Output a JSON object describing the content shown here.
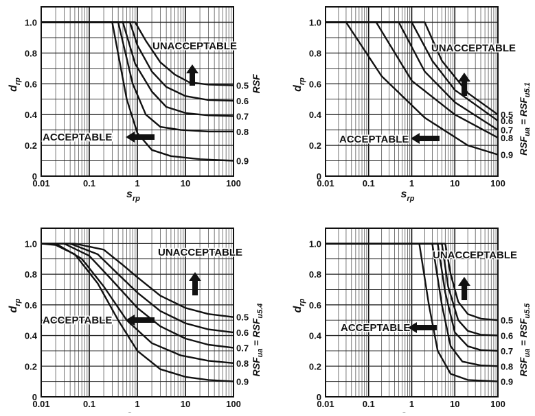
{
  "chart_data": [
    {
      "type": "line",
      "xscale": "log",
      "xlim": [
        0.01,
        100
      ],
      "ylim": [
        0,
        1.1
      ],
      "x_ticks": [
        "0.01",
        "0.1",
        "1",
        "10",
        "100"
      ],
      "y_ticks": [
        "0",
        "0.2",
        "0.4",
        "0.6",
        "0.8",
        "1.0"
      ],
      "xlabel_main": "s",
      "xlabel_sub": "rp",
      "ylabel_main": "d",
      "ylabel_sub": "rp",
      "right_label_main": "RSF",
      "right_label_sub": "",
      "right_label_rest": "",
      "unacceptable": "UNACCEPTABLE",
      "acceptable": "ACCEPTABLE",
      "series": [
        {
          "name": "0.5",
          "x": [
            0.01,
            0.3,
            0.9,
            1.5,
            3,
            6,
            12,
            30,
            100
          ],
          "y": [
            1.0,
            1.0,
            1.0,
            0.88,
            0.74,
            0.66,
            0.61,
            0.595,
            0.59
          ]
        },
        {
          "name": "0.6",
          "x": [
            0.01,
            0.3,
            0.7,
            1,
            2,
            4,
            10,
            30,
            100
          ],
          "y": [
            1.0,
            1.0,
            1.0,
            0.85,
            0.68,
            0.58,
            0.52,
            0.495,
            0.49
          ]
        },
        {
          "name": "0.7",
          "x": [
            0.01,
            0.3,
            0.5,
            0.9,
            2,
            4,
            10,
            30,
            100
          ],
          "y": [
            1.0,
            1.0,
            1.0,
            0.73,
            0.55,
            0.45,
            0.41,
            0.395,
            0.39
          ]
        },
        {
          "name": "0.8",
          "x": [
            0.01,
            0.25,
            0.4,
            0.8,
            1.5,
            3,
            8,
            30,
            100
          ],
          "y": [
            1.0,
            1.0,
            1.0,
            0.6,
            0.4,
            0.32,
            0.3,
            0.29,
            0.29
          ]
        },
        {
          "name": "0.9",
          "x": [
            0.01,
            0.2,
            0.3,
            0.6,
            1,
            2,
            5,
            20,
            100
          ],
          "y": [
            1.0,
            1.0,
            1.0,
            0.5,
            0.28,
            0.17,
            0.13,
            0.11,
            0.1
          ]
        }
      ]
    },
    {
      "type": "line",
      "xscale": "log",
      "xlim": [
        0.01,
        100
      ],
      "ylim": [
        0,
        1.1
      ],
      "x_ticks": [
        "0.01",
        "0.1",
        "1",
        "10",
        "100"
      ],
      "y_ticks": [
        "0",
        "0.2",
        "0.4",
        "0.6",
        "0.8",
        "1.0"
      ],
      "xlabel_main": "s",
      "xlabel_sub": "rp",
      "ylabel_main": "d",
      "ylabel_sub": "rp",
      "right_label_main": "RSF",
      "right_label_sub": "ua",
      "right_label_rest": " = RSF",
      "right_label_sub2": "u5.1",
      "unacceptable": "UNACCEPTABLE",
      "acceptable": "ACCEPTABLE",
      "series": [
        {
          "name": "0.5",
          "x": [
            0.01,
            1.6,
            2,
            5,
            20,
            100
          ],
          "y": [
            1.0,
            1.0,
            1.0,
            0.75,
            0.54,
            0.4
          ]
        },
        {
          "name": "0.6",
          "x": [
            0.01,
            0.8,
            1,
            3,
            10,
            100
          ],
          "y": [
            1.0,
            1.0,
            1.0,
            0.75,
            0.56,
            0.36
          ]
        },
        {
          "name": "0.7",
          "x": [
            0.01,
            0.4,
            0.5,
            2,
            10,
            100
          ],
          "y": [
            1.0,
            1.0,
            1.0,
            0.68,
            0.48,
            0.3
          ]
        },
        {
          "name": "0.8",
          "x": [
            0.01,
            0.12,
            0.15,
            1,
            10,
            100
          ],
          "y": [
            1.0,
            1.0,
            1.0,
            0.62,
            0.4,
            0.25
          ]
        },
        {
          "name": "0.9",
          "x": [
            0.01,
            0.025,
            0.03,
            0.2,
            2,
            20,
            100
          ],
          "y": [
            1.0,
            1.0,
            1.0,
            0.65,
            0.38,
            0.2,
            0.14
          ]
        }
      ]
    },
    {
      "type": "line",
      "xscale": "log",
      "xlim": [
        0.01,
        100
      ],
      "ylim": [
        0,
        1.1
      ],
      "x_ticks": [
        "0.01",
        "0.1",
        "1",
        "10",
        "100"
      ],
      "y_ticks": [
        "0",
        "0.2",
        "0.4",
        "0.6",
        "0.8",
        "1.0"
      ],
      "xlabel_main": "s",
      "xlabel_sub": "rp",
      "ylabel_main": "d",
      "ylabel_sub": "rp",
      "right_label_main": "RSF",
      "right_label_sub": "ua",
      "right_label_rest": " = RSF",
      "right_label_sub2": "u5.4",
      "unacceptable": "UNACCEPTABLE",
      "acceptable": "ACCEPTABLE",
      "series": [
        {
          "name": "0.5",
          "x": [
            0.01,
            0.05,
            0.2,
            0.5,
            1,
            3,
            10,
            30,
            100
          ],
          "y": [
            1.0,
            1.0,
            0.96,
            0.86,
            0.78,
            0.66,
            0.58,
            0.54,
            0.52
          ]
        },
        {
          "name": "0.6",
          "x": [
            0.01,
            0.04,
            0.15,
            0.4,
            1,
            3,
            10,
            30,
            100
          ],
          "y": [
            1.0,
            1.0,
            0.93,
            0.8,
            0.68,
            0.56,
            0.48,
            0.44,
            0.42
          ]
        },
        {
          "name": "0.7",
          "x": [
            0.01,
            0.03,
            0.1,
            0.3,
            1,
            3,
            10,
            30,
            100
          ],
          "y": [
            1.0,
            1.0,
            0.92,
            0.76,
            0.58,
            0.46,
            0.38,
            0.34,
            0.32
          ]
        },
        {
          "name": "0.8",
          "x": [
            0.01,
            0.02,
            0.07,
            0.2,
            0.6,
            2,
            8,
            30,
            100
          ],
          "y": [
            1.0,
            1.0,
            0.9,
            0.72,
            0.5,
            0.35,
            0.27,
            0.235,
            0.22
          ]
        },
        {
          "name": "0.9",
          "x": [
            0.01,
            0.02,
            0.05,
            0.15,
            0.4,
            1,
            3,
            10,
            30,
            100
          ],
          "y": [
            1.0,
            0.99,
            0.93,
            0.74,
            0.5,
            0.3,
            0.18,
            0.13,
            0.11,
            0.1
          ]
        }
      ]
    },
    {
      "type": "line",
      "xscale": "log",
      "xlim": [
        0.01,
        100
      ],
      "ylim": [
        0,
        1.1
      ],
      "x_ticks": [
        "0.01",
        "0.1",
        "1",
        "10",
        "100"
      ],
      "y_ticks": [
        "0",
        "0.2",
        "0.4",
        "0.6",
        "0.8",
        "1.0"
      ],
      "xlabel_main": "s",
      "xlabel_sub": "rp",
      "ylabel_main": "d",
      "ylabel_sub": "rp",
      "right_label_main": "RSF",
      "right_label_sub": "ua",
      "right_label_rest": " = RSF",
      "right_label_sub2": "u5.5",
      "unacceptable": "UNACCEPTABLE",
      "acceptable": "ACCEPTABLE",
      "series": [
        {
          "name": "0.5",
          "x": [
            0.01,
            5.5,
            6,
            8,
            12,
            20,
            40,
            100
          ],
          "y": [
            1.0,
            1.0,
            1.0,
            0.8,
            0.62,
            0.54,
            0.51,
            0.5
          ]
        },
        {
          "name": "0.6",
          "x": [
            0.01,
            4.5,
            5,
            7,
            12,
            20,
            40,
            100
          ],
          "y": [
            1.0,
            1.0,
            1.0,
            0.72,
            0.5,
            0.43,
            0.405,
            0.4
          ]
        },
        {
          "name": "0.7",
          "x": [
            0.01,
            3.5,
            4,
            6,
            10,
            20,
            40,
            100
          ],
          "y": [
            1.0,
            1.0,
            1.0,
            0.68,
            0.42,
            0.33,
            0.305,
            0.3
          ]
        },
        {
          "name": "0.8",
          "x": [
            0.01,
            2.5,
            3,
            5,
            8,
            15,
            40,
            100
          ],
          "y": [
            1.0,
            1.0,
            1.0,
            0.6,
            0.33,
            0.23,
            0.205,
            0.2
          ]
        },
        {
          "name": "0.9",
          "x": [
            0.01,
            1.3,
            1.5,
            2.5,
            4,
            8,
            20,
            100
          ],
          "y": [
            1.0,
            1.0,
            1.0,
            0.6,
            0.3,
            0.15,
            0.11,
            0.1
          ]
        }
      ]
    }
  ]
}
